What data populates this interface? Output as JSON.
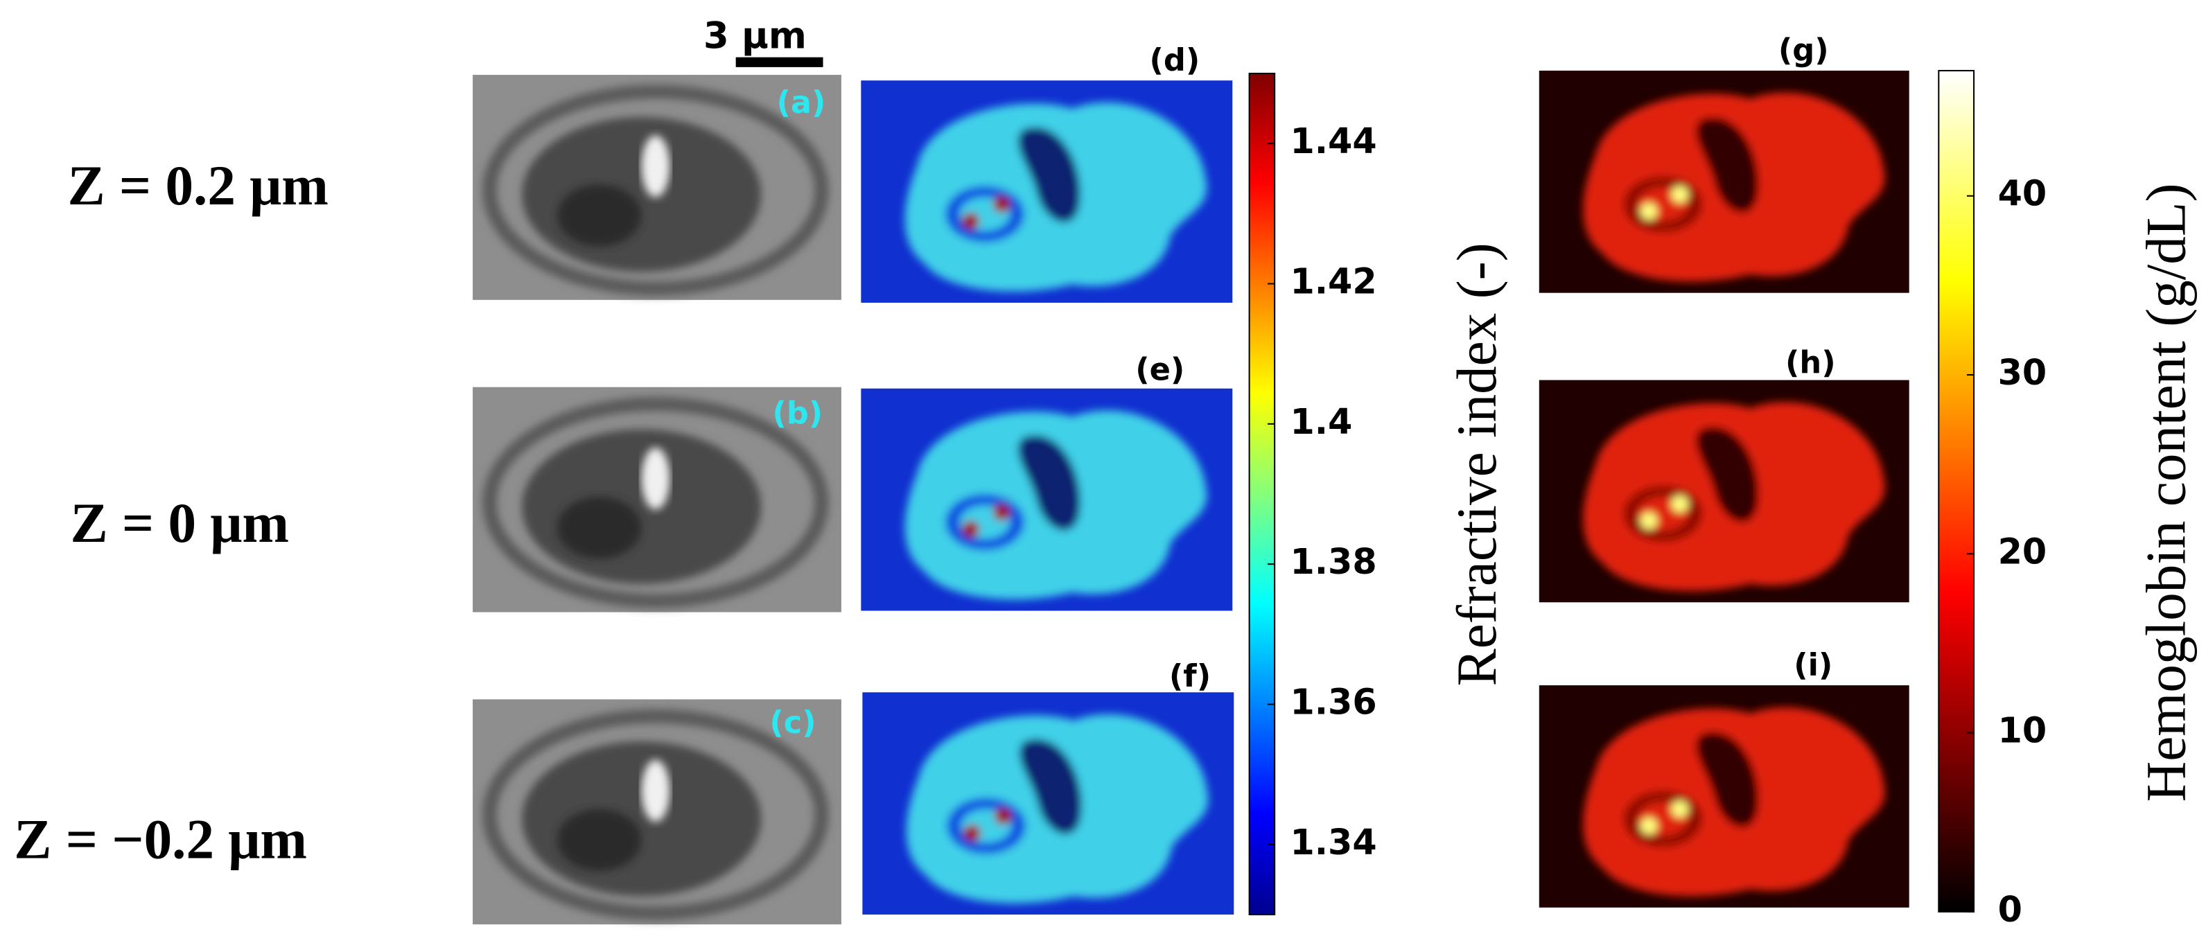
{
  "scale_bar": "3 μm",
  "rows": [
    "Z = 0.2 μm",
    "Z = 0 μm",
    "Z = −0.2 μm"
  ],
  "panels": [
    "(a)",
    "(b)",
    "(c)",
    "(d)",
    "(e)",
    "(f)",
    "(g)",
    "(h)",
    "(i)"
  ],
  "colorbar_ri": {
    "label": "Refractive index (-)",
    "lim": [
      1.33,
      1.45
    ],
    "ticks": [
      1.34,
      1.36,
      1.38,
      1.4,
      1.42,
      1.44
    ]
  },
  "colorbar_hb": {
    "label": "Hemoglobin content (g/dL)",
    "lim": [
      0,
      47
    ],
    "ticks": [
      0,
      10,
      20,
      30,
      40
    ]
  }
}
